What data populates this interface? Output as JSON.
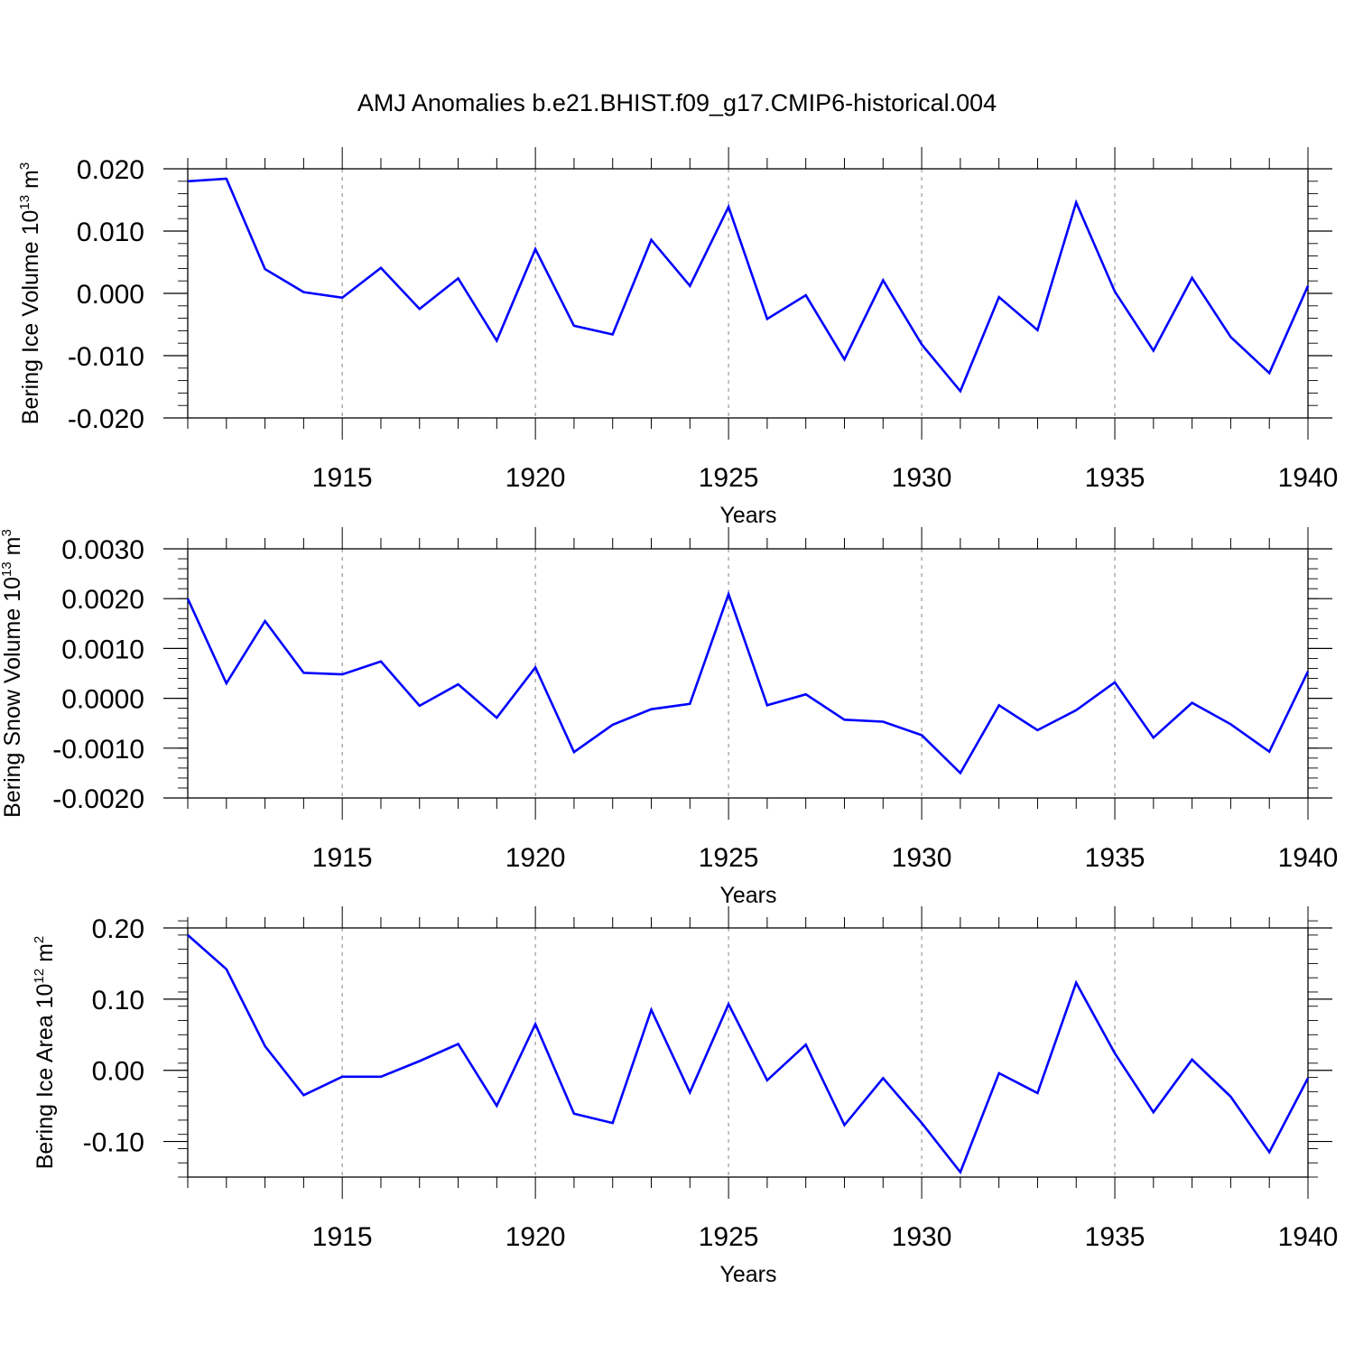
{
  "title": "AMJ Anomalies b.e21.BHIST.f09_g17.CMIP6-historical.004",
  "line_color": "#0000ff",
  "grid_color": "#999999",
  "chart_data": [
    {
      "type": "line",
      "ylabel_main": "Bering Ice Volume 10",
      "ylabel_sup1": "13",
      "ylabel_mid": " m",
      "ylabel_sup2": "3",
      "xlabel": "Years",
      "xlim": [
        1911,
        1940
      ],
      "ylim": [
        -0.02,
        0.02
      ],
      "yticks": [
        0.02,
        0.01,
        0.0,
        -0.01,
        -0.02
      ],
      "ytick_labels": [
        "0.020",
        "0.010",
        "0.000",
        "-0.010",
        "-0.020"
      ],
      "y_minor_step": 0.002,
      "xticks": [
        1915,
        1920,
        1925,
        1930,
        1935,
        1940
      ],
      "xtick_labels": [
        "1915",
        "1920",
        "1925",
        "1930",
        "1935",
        "1940"
      ],
      "x": [
        1911,
        1912,
        1913,
        1914,
        1915,
        1916,
        1917,
        1918,
        1919,
        1920,
        1921,
        1922,
        1923,
        1924,
        1925,
        1926,
        1927,
        1928,
        1929,
        1930,
        1931,
        1932,
        1933,
        1934,
        1935,
        1936,
        1937,
        1938,
        1939,
        1940
      ],
      "values": [
        0.018,
        0.0184,
        0.0039,
        0.0002,
        -0.0007,
        0.0041,
        -0.0025,
        0.0024,
        -0.0076,
        0.0071,
        -0.0052,
        -0.0066,
        0.0086,
        0.0012,
        0.0139,
        -0.0041,
        -0.0003,
        -0.0106,
        0.0021,
        -0.0082,
        -0.0157,
        -0.0006,
        -0.0059,
        0.0146,
        0.0003,
        -0.0092,
        0.0025,
        -0.007,
        -0.0128,
        0.0012
      ]
    },
    {
      "type": "line",
      "ylabel_main": "Bering Snow Volume 10",
      "ylabel_sup1": "13",
      "ylabel_mid": " m",
      "ylabel_sup2": "3",
      "xlabel": "Years",
      "xlim": [
        1911,
        1940
      ],
      "ylim": [
        -0.002,
        0.003
      ],
      "yticks": [
        0.003,
        0.002,
        0.001,
        0.0,
        -0.001,
        -0.002
      ],
      "ytick_labels": [
        "0.0030",
        "0.0020",
        "0.0010",
        "0.0000",
        "-0.0010",
        "-0.0020"
      ],
      "y_minor_step": 0.0002,
      "xticks": [
        1915,
        1920,
        1925,
        1930,
        1935,
        1940
      ],
      "xtick_labels": [
        "1915",
        "1920",
        "1925",
        "1930",
        "1935",
        "1940"
      ],
      "x": [
        1911,
        1912,
        1913,
        1914,
        1915,
        1916,
        1917,
        1918,
        1919,
        1920,
        1921,
        1922,
        1923,
        1924,
        1925,
        1926,
        1927,
        1928,
        1929,
        1930,
        1931,
        1932,
        1933,
        1934,
        1935,
        1936,
        1937,
        1938,
        1939,
        1940
      ],
      "values": [
        0.002,
        0.0003,
        0.00155,
        0.00051,
        0.00048,
        0.00074,
        -0.00015,
        0.00028,
        -0.00039,
        0.00062,
        -0.00108,
        -0.00053,
        -0.00022,
        -0.00011,
        0.00209,
        -0.00014,
        8e-05,
        -0.00043,
        -0.00047,
        -0.00074,
        -0.0015,
        -0.00014,
        -0.00064,
        -0.00024,
        0.00032,
        -0.00079,
        -9e-05,
        -0.00052,
        -0.00107,
        0.00054
      ]
    },
    {
      "type": "line",
      "ylabel_main": "Bering Ice Area 10",
      "ylabel_sup1": "12",
      "ylabel_mid": " m",
      "ylabel_sup2": "2",
      "xlabel": "Years",
      "xlim": [
        1911,
        1940
      ],
      "ylim": [
        -0.15,
        0.2
      ],
      "yticks": [
        0.2,
        0.1,
        0.0,
        -0.1
      ],
      "ytick_labels": [
        "0.20",
        "0.10",
        "0.00",
        "-0.10"
      ],
      "y_minor_step": 0.02,
      "xticks": [
        1915,
        1920,
        1925,
        1930,
        1935,
        1940
      ],
      "xtick_labels": [
        "1915",
        "1920",
        "1925",
        "1930",
        "1935",
        "1940"
      ],
      "x": [
        1911,
        1912,
        1913,
        1914,
        1915,
        1916,
        1917,
        1918,
        1919,
        1920,
        1921,
        1922,
        1923,
        1924,
        1925,
        1926,
        1927,
        1928,
        1929,
        1930,
        1931,
        1932,
        1933,
        1934,
        1935,
        1936,
        1937,
        1938,
        1939,
        1940
      ],
      "values": [
        0.19,
        0.142,
        0.034,
        -0.035,
        -0.009,
        -0.009,
        0.013,
        0.037,
        -0.05,
        0.065,
        -0.061,
        -0.074,
        0.085,
        -0.031,
        0.093,
        -0.014,
        0.036,
        -0.077,
        -0.011,
        -0.074,
        -0.143,
        -0.004,
        -0.032,
        0.123,
        0.024,
        -0.059,
        0.015,
        -0.037,
        -0.115,
        -0.011
      ]
    }
  ]
}
